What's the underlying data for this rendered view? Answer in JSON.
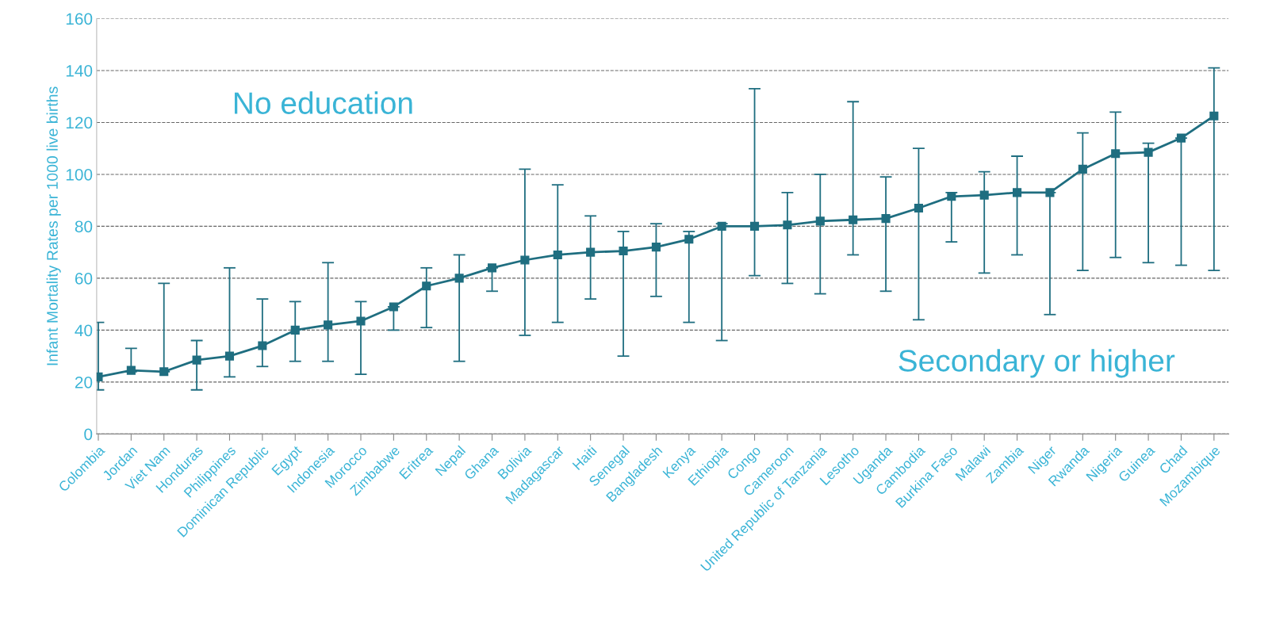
{
  "chart_data": {
    "type": "line",
    "ylabel": "Infant Mortality Rates per 1000 live births",
    "categories": [
      "Colombia",
      "Jordan",
      "Viet Nam",
      "Honduras",
      "Philippines",
      "Dominican Republic",
      "Egypt",
      "Indonesia",
      "Morocco",
      "Zimbabwe",
      "Eritrea",
      "Nepal",
      "Ghana",
      "Bolivia",
      "Madagascar",
      "Haiti",
      "Senegal",
      "Bangladesh",
      "Kenya",
      "Ethiopia",
      "Congo",
      "Cameroon",
      "United Republic of Tanzania",
      "Lesotho",
      "Uganda",
      "Cambodia",
      "Burkina Faso",
      "Malawi",
      "Zambia",
      "Niger",
      "Rwanda",
      "Nigeria",
      "Guinea",
      "Chad",
      "Mozambique"
    ],
    "series": [
      {
        "color": "#1f6e80",
        "values": [
          22,
          24.5,
          24,
          28.5,
          30,
          34,
          40,
          42,
          43.5,
          49,
          57,
          60,
          64,
          67,
          69,
          70,
          70.5,
          72,
          75,
          80,
          80,
          80.5,
          82,
          82.5,
          83,
          87,
          91.5,
          92,
          93,
          93,
          102,
          108,
          108.5,
          114,
          122.5
        ],
        "errors": [
          [
            17,
            43
          ],
          [
            24,
            33
          ],
          [
            24,
            58
          ],
          [
            17,
            36
          ],
          [
            22,
            64
          ],
          [
            26,
            52
          ],
          [
            28,
            51
          ],
          [
            28,
            66
          ],
          [
            23,
            51
          ],
          [
            40,
            49
          ],
          [
            41,
            64
          ],
          [
            28,
            69
          ],
          [
            55,
            64
          ],
          [
            38,
            102
          ],
          [
            43,
            96
          ],
          [
            52,
            84
          ],
          [
            30,
            78
          ],
          [
            53,
            81
          ],
          [
            43,
            78
          ],
          [
            36,
            81
          ],
          [
            61,
            133
          ],
          [
            58,
            93
          ],
          [
            54,
            100
          ],
          [
            69,
            128
          ],
          [
            55,
            99
          ],
          [
            44,
            110
          ],
          [
            74,
            93
          ],
          [
            62,
            101
          ],
          [
            69,
            107
          ],
          [
            46,
            93
          ],
          [
            63,
            116
          ],
          [
            68,
            124
          ],
          [
            66,
            112
          ],
          [
            65,
            114
          ],
          [
            63,
            141
          ]
        ]
      }
    ],
    "marker": "square",
    "line_style": "solid",
    "ylim": [
      0,
      160
    ],
    "yticks": [
      0,
      20,
      40,
      60,
      80,
      100,
      120,
      140,
      160
    ],
    "grid": "y",
    "annotations": [
      "No education",
      "Secondary or higher"
    ]
  }
}
